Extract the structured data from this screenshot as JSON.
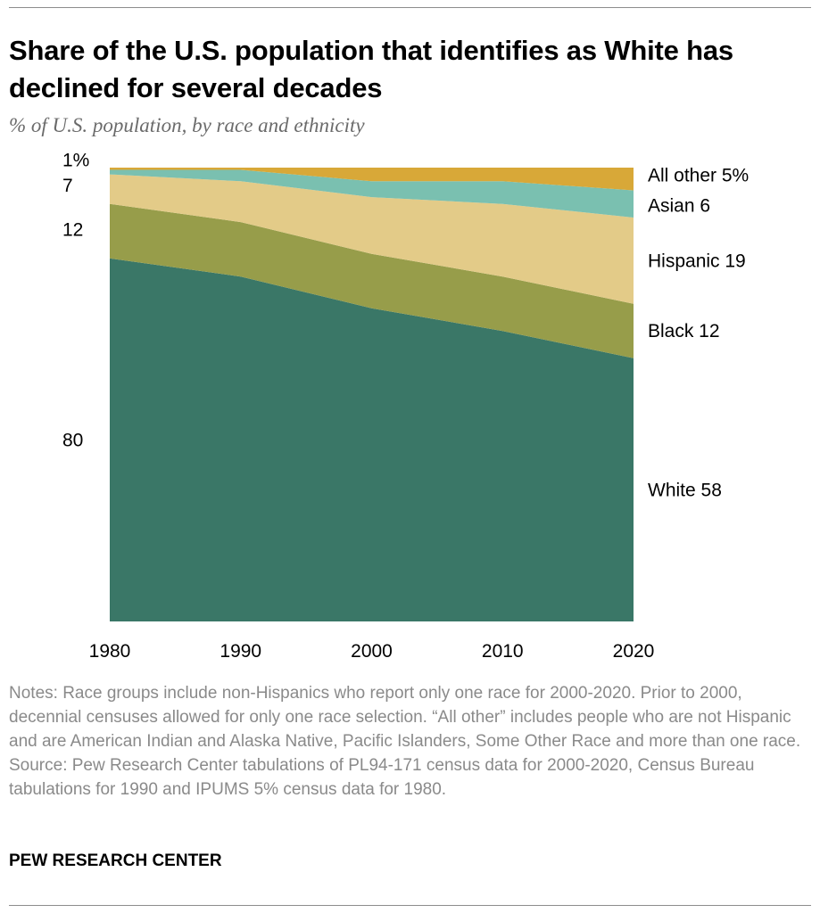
{
  "title": "Share of the U.S. population that identifies as White has declined for several decades",
  "subtitle": "% of U.S. population, by race and ethnicity",
  "notes": "Notes: Race groups include non-Hispanics who report only one race for 2000-2020. Prior to 2000, decennial censuses allowed for only one race selection. “All other” includes people who are not Hispanic and are American Indian and Alaska Native, Pacific Islanders, Some Other Race and more than one race.",
  "source": "Source: Pew Research Center tabulations of PL94-171 census data for 2000-2020, Census Bureau tabulations for 1990 and IPUMS 5% census data for 1980.",
  "brand": "PEW RESEARCH CENTER",
  "chart_data": {
    "type": "area",
    "stacked": true,
    "x": [
      1980,
      1990,
      2000,
      2010,
      2020
    ],
    "x_tick_labels": [
      "1980",
      "1990",
      "2000",
      "2010",
      "2020"
    ],
    "ylim": [
      0,
      100
    ],
    "grid": false,
    "series": [
      {
        "name": "White",
        "values": [
          80,
          76,
          69,
          64,
          58
        ],
        "color": "#3a7767",
        "end_label": "White 58",
        "start_label": "80"
      },
      {
        "name": "Black",
        "values": [
          12,
          12,
          12,
          12,
          12
        ],
        "color": "#979d4a",
        "end_label": "Black 12",
        "start_label": "12"
      },
      {
        "name": "Hispanic",
        "values": [
          6.5,
          9,
          12.5,
          16,
          19
        ],
        "color": "#e3cb88",
        "end_label": "Hispanic 19",
        "start_label": "7"
      },
      {
        "name": "Asian",
        "values": [
          1,
          2.5,
          3.5,
          5,
          6
        ],
        "color": "#7ac0b0",
        "end_label": "Asian 6",
        "start_label": ""
      },
      {
        "name": "All other",
        "values": [
          0.5,
          0.5,
          3,
          3,
          5
        ],
        "color": "#d8a838",
        "end_label": "All other 5%",
        "start_label": "1%"
      }
    ]
  }
}
